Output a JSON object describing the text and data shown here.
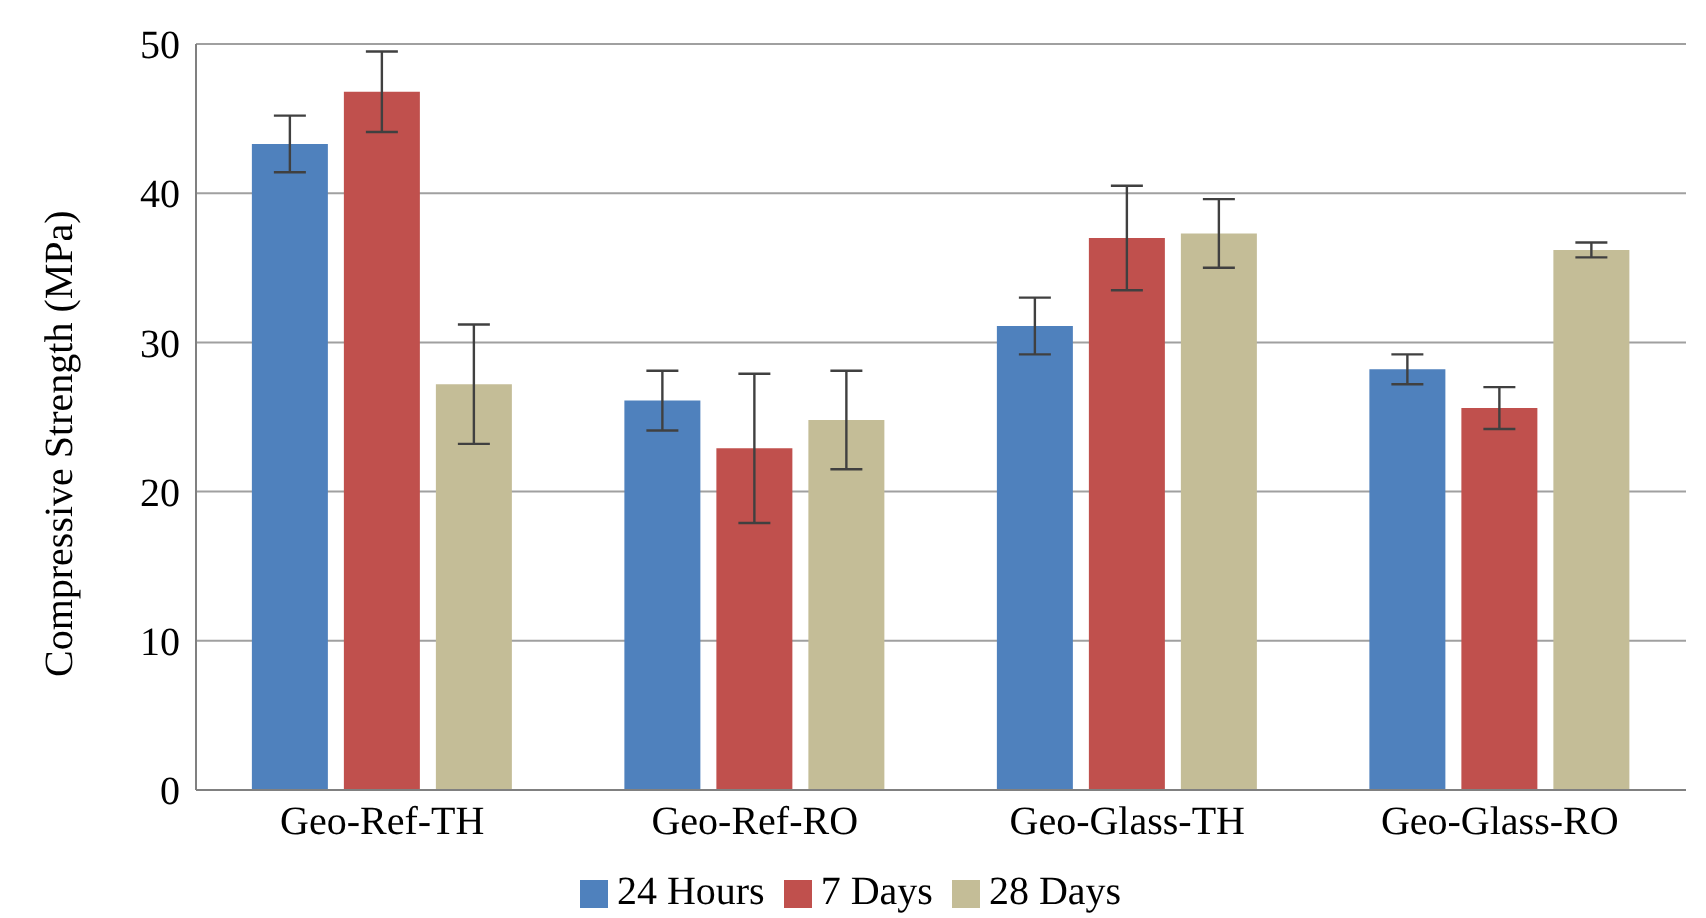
{
  "chart_data": {
    "type": "bar",
    "ylabel": "Compressive Strength (MPa)",
    "categories": [
      "Geo-Ref-TH",
      "Geo-Ref-RO",
      "Geo-Glass-TH",
      "Geo-Glass-RO"
    ],
    "series": [
      {
        "name": "24 Hours",
        "color": "#4f81bd",
        "values": [
          43.3,
          26.1,
          31.1,
          28.2
        ],
        "errors": [
          1.9,
          2,
          1.9,
          1
        ]
      },
      {
        "name": "7 Days",
        "color": "#c0504d",
        "values": [
          46.8,
          22.9,
          37,
          25.6
        ],
        "errors": [
          2.7,
          5,
          3.5,
          1.4
        ]
      },
      {
        "name": "28 Days",
        "color": "#c4bd97",
        "values": [
          27.2,
          24.8,
          37.3,
          36.2
        ],
        "errors": [
          4,
          3.3,
          2.3,
          0.5
        ]
      }
    ],
    "ylim": [
      0,
      50
    ],
    "yticks": [
      0,
      10,
      20,
      30,
      40,
      50
    ],
    "grid": "y",
    "legend": "bottom"
  }
}
